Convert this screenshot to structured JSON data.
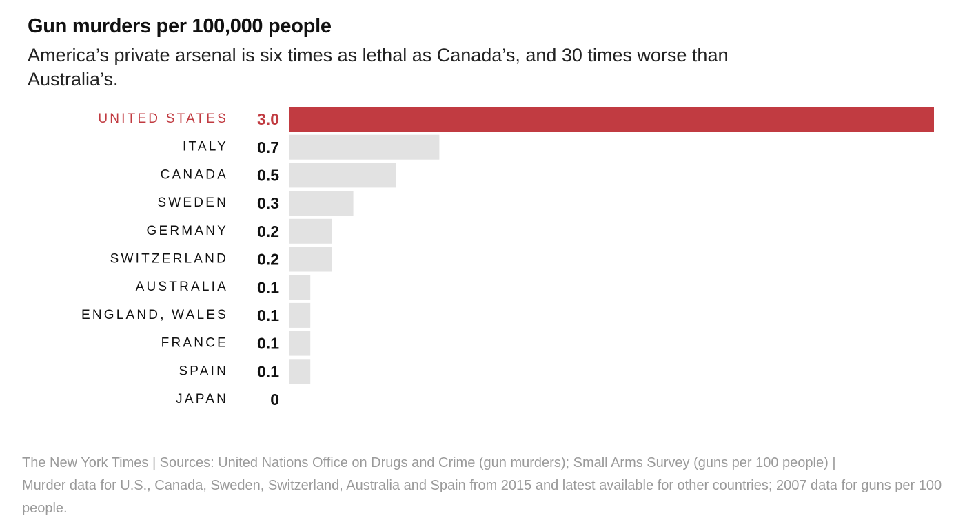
{
  "chart_data": {
    "type": "bar",
    "orientation": "horizontal",
    "title": "Gun murders per 100,000 people",
    "subtitle": "America’s private arsenal is six times as lethal as Canada’s, and 30 times worse than Australia’s.",
    "categories": [
      "UNITED STATES",
      "ITALY",
      "CANADA",
      "SWEDEN",
      "GERMANY",
      "SWITZERLAND",
      "AUSTRALIA",
      "ENGLAND, WALES",
      "FRANCE",
      "SPAIN",
      "JAPAN"
    ],
    "values": [
      3.0,
      0.7,
      0.5,
      0.3,
      0.2,
      0.2,
      0.1,
      0.1,
      0.1,
      0.1,
      0
    ],
    "value_labels": [
      "3.0",
      "0.7",
      "0.5",
      "0.3",
      "0.2",
      "0.2",
      "0.1",
      "0.1",
      "0.1",
      "0.1",
      "0"
    ],
    "colors": [
      "#c13b41",
      "#e2e2e2",
      "#e2e2e2",
      "#e2e2e2",
      "#e2e2e2",
      "#e2e2e2",
      "#e2e2e2",
      "#e2e2e2",
      "#e2e2e2",
      "#e2e2e2",
      "#e2e2e2"
    ],
    "label_colors": [
      "#c13b41",
      "#111111",
      "#111111",
      "#111111",
      "#111111",
      "#111111",
      "#111111",
      "#111111",
      "#111111",
      "#111111",
      "#111111"
    ],
    "source": "The New York Times | Sources: United Nations Office on Drugs and Crime (gun murders); Small Arms Survey (guns per 100 people)  |",
    "note": "Murder data for U.S., Canada, Sweden, Switzerland, Australia and Spain from 2015 and latest available for other countries; 2007 data for guns per 100 people."
  }
}
